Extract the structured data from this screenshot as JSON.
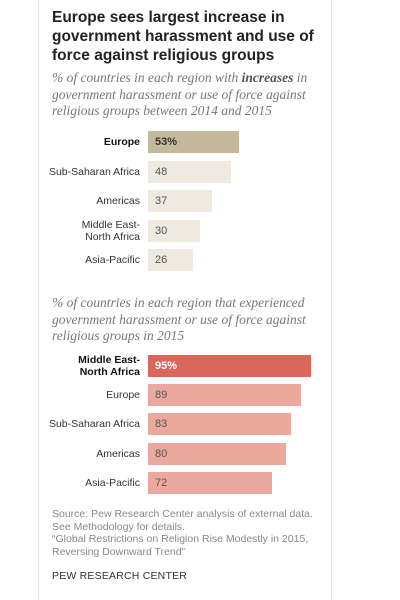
{
  "title": "Europe sees largest increase in government harassment and use of force against religious groups",
  "chart_data": [
    {
      "type": "bar",
      "orientation": "horizontal",
      "subtitle": [
        "% of countries in each region with ",
        "increases",
        " in government harassment or use of force against religious groups between 2014 and 2015"
      ],
      "categories": [
        "Europe",
        "Sub-Saharan Africa",
        "Americas",
        "Middle East-\nNorth Africa",
        "Asia-Pacific"
      ],
      "values": [
        53,
        48,
        37,
        30,
        26
      ],
      "value_labels": [
        "53%",
        "48",
        "37",
        "30",
        "26"
      ],
      "colors": [
        "#c4ba9b",
        "#eeeadf",
        "#eeeadf",
        "#eeeadf",
        "#eeeadf"
      ],
      "highlight": 0,
      "xlim": [
        0,
        100
      ]
    },
    {
      "type": "bar",
      "orientation": "horizontal",
      "subtitle": [
        "% of countries in each region that experienced government harassment or use of force against religious groups in 2015"
      ],
      "categories": [
        "Middle East-\nNorth Africa",
        "Europe",
        "Sub-Saharan Africa",
        "Americas",
        "Asia-Pacific"
      ],
      "values": [
        95,
        89,
        83,
        80,
        72
      ],
      "value_labels": [
        "95%",
        "89",
        "83",
        "80",
        "72"
      ],
      "colors": [
        "#d9675c",
        "#eba99d",
        "#eba99d",
        "#eba99d",
        "#eba99d"
      ],
      "highlight": 0,
      "xlim": [
        0,
        100
      ]
    }
  ],
  "source": [
    "Source: Pew Research Center analysis of external data.",
    "See Methodology for details.",
    "“Global Restrictions on Religion Rise Modestly in 2015, Reversing Downward Trend”"
  ],
  "credit": "PEW RESEARCH CENTER"
}
